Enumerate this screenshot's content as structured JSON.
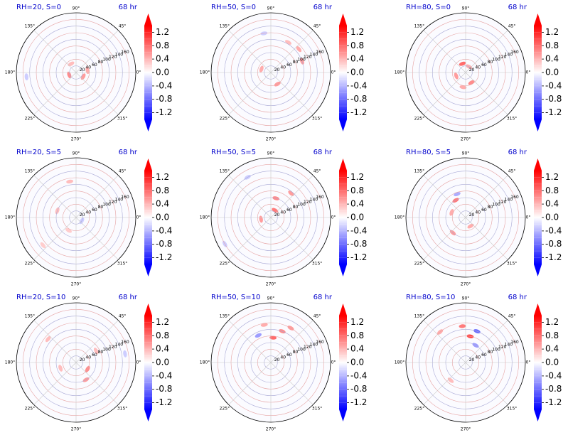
{
  "figure": {
    "time_label": "68 hr",
    "angle_labels": [
      "0°",
      "45°",
      "90°",
      "135°",
      "180°",
      "225°",
      "270°",
      "315°"
    ],
    "radial_ticks": [
      20,
      40,
      60,
      80,
      100,
      120,
      140,
      160
    ],
    "colorbar_ticks": [
      "1.2",
      "0.8",
      "0.4",
      "0.0",
      "-0.4",
      "-0.8",
      "-1.2"
    ],
    "colormap": {
      "low": "#0000ff",
      "mid": "#ffffff",
      "high": "#ff0000"
    },
    "title_color": "#0000cc"
  },
  "chart_data": [
    {
      "type": "heatmap",
      "projection": "polar",
      "title": "RH=20, S=0",
      "time": "68 hr",
      "rlim": [
        0,
        180
      ],
      "theta_ticks_deg": [
        0,
        45,
        90,
        135,
        180,
        225,
        270,
        315
      ],
      "r_ticks": [
        20,
        40,
        60,
        80,
        100,
        120,
        140,
        160
      ],
      "colorbar": {
        "vmin": -1.4,
        "vmax": 1.4,
        "ticks": [
          1.2,
          0.8,
          0.4,
          0.0,
          -0.4,
          -0.8,
          -1.2
        ],
        "extend": "both"
      },
      "features": [
        {
          "r": 22,
          "theta": 200,
          "value": 0.7
        },
        {
          "r": 25,
          "theta": 330,
          "value": 0.6
        },
        {
          "r": 35,
          "theta": 10,
          "value": 0.5
        },
        {
          "r": 30,
          "theta": 120,
          "value": 0.4
        },
        {
          "r": 150,
          "theta": 185,
          "value": -0.3
        }
      ]
    },
    {
      "type": "heatmap",
      "projection": "polar",
      "title": "RH=50, S=0",
      "time": "68 hr",
      "rlim": [
        0,
        180
      ],
      "theta_ticks_deg": [
        0,
        45,
        90,
        135,
        180,
        225,
        270,
        315
      ],
      "r_ticks": [
        20,
        40,
        60,
        80,
        100,
        120,
        140,
        160
      ],
      "colorbar": {
        "vmin": -1.4,
        "vmax": 1.4,
        "ticks": [
          1.2,
          0.8,
          0.4,
          0.0,
          -0.4,
          -0.8,
          -1.2
        ],
        "extend": "both"
      },
      "features": [
        {
          "r": 100,
          "theta": 20,
          "value": 0.6
        },
        {
          "r": 110,
          "theta": 40,
          "value": 0.5
        },
        {
          "r": 40,
          "theta": 300,
          "value": 0.6
        },
        {
          "r": 30,
          "theta": 160,
          "value": 0.5
        },
        {
          "r": 105,
          "theta": 60,
          "value": 0.4
        },
        {
          "r": 120,
          "theta": 100,
          "value": -0.3
        }
      ]
    },
    {
      "type": "heatmap",
      "projection": "polar",
      "title": "RH=80, S=0",
      "time": "68 hr",
      "rlim": [
        0,
        180
      ],
      "theta_ticks_deg": [
        0,
        45,
        90,
        135,
        180,
        225,
        270,
        315
      ],
      "r_ticks": [
        20,
        40,
        60,
        80,
        100,
        120,
        140,
        160
      ],
      "colorbar": {
        "vmin": -1.4,
        "vmax": 1.4,
        "ticks": [
          1.2,
          0.8,
          0.4,
          0.0,
          -0.4,
          -0.8,
          -1.2
        ],
        "extend": "both"
      },
      "features": [
        {
          "r": 28,
          "theta": 110,
          "value": 0.9
        },
        {
          "r": 35,
          "theta": 300,
          "value": 0.7
        },
        {
          "r": 30,
          "theta": 200,
          "value": 0.6
        },
        {
          "r": 45,
          "theta": 260,
          "value": 0.5
        },
        {
          "r": 20,
          "theta": 60,
          "value": 0.5
        }
      ]
    },
    {
      "type": "heatmap",
      "projection": "polar",
      "title": "RH=20, S=5",
      "time": "68 hr",
      "rlim": [
        0,
        180
      ],
      "theta_ticks_deg": [
        0,
        45,
        90,
        135,
        180,
        225,
        270,
        315
      ],
      "r_ticks": [
        20,
        40,
        60,
        80,
        100,
        120,
        140,
        160
      ],
      "colorbar": {
        "vmin": -1.4,
        "vmax": 1.4,
        "ticks": [
          1.2,
          0.8,
          0.4,
          0.0,
          -0.4,
          -0.8,
          -1.2
        ],
        "extend": "both"
      },
      "features": [
        {
          "r": 110,
          "theta": 100,
          "value": 0.4
        },
        {
          "r": 60,
          "theta": 160,
          "value": 0.4
        },
        {
          "r": 45,
          "theta": 240,
          "value": 0.3
        },
        {
          "r": 20,
          "theta": 330,
          "value": -0.3
        },
        {
          "r": 130,
          "theta": 220,
          "value": 0.3
        }
      ]
    },
    {
      "type": "heatmap",
      "projection": "polar",
      "title": "RH=50, S=5",
      "time": "68 hr",
      "rlim": [
        0,
        180
      ],
      "theta_ticks_deg": [
        0,
        45,
        90,
        135,
        180,
        225,
        270,
        315
      ],
      "r_ticks": [
        20,
        40,
        60,
        80,
        100,
        120,
        140,
        160
      ],
      "colorbar": {
        "vmin": -1.4,
        "vmax": 1.4,
        "ticks": [
          1.2,
          0.8,
          0.4,
          0.0,
          -0.4,
          -0.8,
          -1.2
        ],
        "extend": "both"
      },
      "features": [
        {
          "r": 25,
          "theta": 60,
          "value": 0.8
        },
        {
          "r": 60,
          "theta": 75,
          "value": 0.7
        },
        {
          "r": 95,
          "theta": 50,
          "value": 0.6
        },
        {
          "r": 30,
          "theta": 190,
          "value": 0.6
        },
        {
          "r": 140,
          "theta": 120,
          "value": -0.3
        },
        {
          "r": 160,
          "theta": 210,
          "value": -0.3
        }
      ]
    },
    {
      "type": "heatmap",
      "projection": "polar",
      "title": "RH=80, S=5",
      "time": "68 hr",
      "rlim": [
        0,
        180
      ],
      "theta_ticks_deg": [
        0,
        45,
        90,
        135,
        180,
        225,
        270,
        315
      ],
      "r_ticks": [
        20,
        40,
        60,
        80,
        100,
        120,
        140,
        160
      ],
      "colorbar": {
        "vmin": -1.4,
        "vmax": 1.4,
        "ticks": [
          1.2,
          0.8,
          0.4,
          0.0,
          -0.4,
          -0.8,
          -1.2
        ],
        "extend": "both"
      },
      "features": [
        {
          "r": 60,
          "theta": 120,
          "value": 0.8
        },
        {
          "r": 45,
          "theta": 160,
          "value": 0.5
        },
        {
          "r": 60,
          "theta": 230,
          "value": 0.6
        },
        {
          "r": 30,
          "theta": 300,
          "value": 0.5
        },
        {
          "r": 75,
          "theta": 110,
          "value": -0.5
        }
      ]
    },
    {
      "type": "heatmap",
      "projection": "polar",
      "title": "RH=20, S=10",
      "time": "68 hr",
      "rlim": [
        0,
        180
      ],
      "theta_ticks_deg": [
        0,
        45,
        90,
        135,
        180,
        225,
        270,
        315
      ],
      "r_ticks": [
        20,
        40,
        60,
        80,
        100,
        120,
        140,
        160
      ],
      "colorbar": {
        "vmin": -1.4,
        "vmax": 1.4,
        "ticks": [
          1.2,
          0.8,
          0.4,
          0.0,
          -0.4,
          -0.8,
          -1.2
        ],
        "extend": "both"
      },
      "features": [
        {
          "r": 40,
          "theta": 330,
          "value": 0.7
        },
        {
          "r": 60,
          "theta": 300,
          "value": 0.6
        },
        {
          "r": 70,
          "theta": 30,
          "value": 0.4
        },
        {
          "r": 110,
          "theta": 140,
          "value": 0.4
        },
        {
          "r": 50,
          "theta": 200,
          "value": 0.4
        },
        {
          "r": 150,
          "theta": 10,
          "value": -0.3
        }
      ]
    },
    {
      "type": "heatmap",
      "projection": "polar",
      "title": "RH=50, S=10",
      "time": "68 hr",
      "rlim": [
        0,
        180
      ],
      "theta_ticks_deg": [
        0,
        45,
        90,
        135,
        180,
        225,
        270,
        315
      ],
      "r_ticks": [
        20,
        40,
        60,
        80,
        100,
        120,
        140,
        160
      ],
      "colorbar": {
        "vmin": -1.4,
        "vmax": 1.4,
        "ticks": [
          1.2,
          0.8,
          0.4,
          0.0,
          -0.4,
          -0.8,
          -1.2
        ],
        "extend": "both"
      },
      "features": [
        {
          "r": 75,
          "theta": 85,
          "value": 0.9
        },
        {
          "r": 100,
          "theta": 70,
          "value": 0.7
        },
        {
          "r": 120,
          "theta": 60,
          "value": 0.6
        },
        {
          "r": 90,
          "theta": 115,
          "value": -0.6
        },
        {
          "r": 115,
          "theta": 100,
          "value": 0.5
        }
      ]
    },
    {
      "type": "heatmap",
      "projection": "polar",
      "title": "RH=80, S=10",
      "time": "68 hr",
      "rlim": [
        0,
        180
      ],
      "theta_ticks_deg": [
        0,
        45,
        90,
        135,
        180,
        225,
        270,
        315
      ],
      "r_ticks": [
        20,
        40,
        60,
        80,
        100,
        120,
        140,
        160
      ],
      "colorbar": {
        "vmin": -1.4,
        "vmax": 1.4,
        "ticks": [
          1.2,
          0.8,
          0.4,
          0.0,
          -0.4,
          -0.8,
          -1.2
        ],
        "extend": "both"
      },
      "features": [
        {
          "r": 80,
          "theta": 80,
          "value": 1.1
        },
        {
          "r": 100,
          "theta": 70,
          "value": -0.9
        },
        {
          "r": 110,
          "theta": 95,
          "value": 0.8
        },
        {
          "r": 60,
          "theta": 60,
          "value": -0.6
        },
        {
          "r": 120,
          "theta": 130,
          "value": 0.5
        },
        {
          "r": 70,
          "theta": 230,
          "value": 0.4
        }
      ]
    }
  ]
}
